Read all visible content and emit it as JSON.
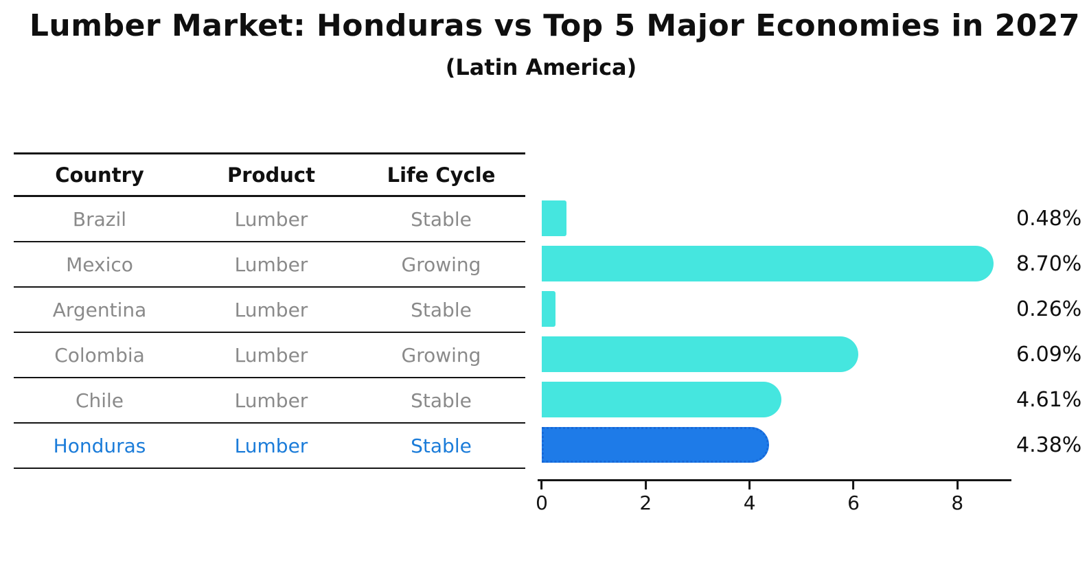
{
  "title": "Lumber Market: Honduras vs Top 5 Major Economies in 2027",
  "subtitle": "(Latin America)",
  "table": {
    "headers": [
      "Country",
      "Product",
      "Life Cycle"
    ],
    "rows": [
      {
        "country": "Brazil",
        "product": "Lumber",
        "life_cycle": "Stable",
        "highlighted": false
      },
      {
        "country": "Mexico",
        "product": "Lumber",
        "life_cycle": "Growing",
        "highlighted": false
      },
      {
        "country": "Argentina",
        "product": "Lumber",
        "life_cycle": "Stable",
        "highlighted": false
      },
      {
        "country": "Colombia",
        "product": "Lumber",
        "life_cycle": "Growing",
        "highlighted": false
      },
      {
        "country": "Chile",
        "product": "Lumber",
        "life_cycle": "Stable",
        "highlighted": false
      },
      {
        "country": "Honduras",
        "product": "Lumber",
        "life_cycle": "Stable",
        "highlighted": true
      }
    ]
  },
  "chart_data": {
    "type": "bar",
    "orientation": "horizontal",
    "title": "Lumber Market: Honduras vs Top 5 Major Economies in 2027",
    "subtitle": "(Latin America)",
    "categories": [
      "Brazil",
      "Mexico",
      "Argentina",
      "Colombia",
      "Chile",
      "Honduras"
    ],
    "values": [
      0.48,
      8.7,
      0.26,
      6.09,
      4.61,
      4.38
    ],
    "value_labels": [
      "0.48%",
      "8.70%",
      "0.26%",
      "6.09%",
      "4.61%",
      "4.38%"
    ],
    "xlabel": "",
    "ylabel": "",
    "xlim": [
      0,
      9.0
    ],
    "xticks": [
      0,
      2,
      4,
      6,
      8
    ],
    "grid": false,
    "legend_position": "none",
    "bar_color": "#45E6DF",
    "highlight_color": "#1E7BE8",
    "highlight_border_color": "#1668D8",
    "highlight_text_color": "#1B7CD9",
    "row_text_color": "#8A8A8A",
    "axis_color": "#141414"
  }
}
